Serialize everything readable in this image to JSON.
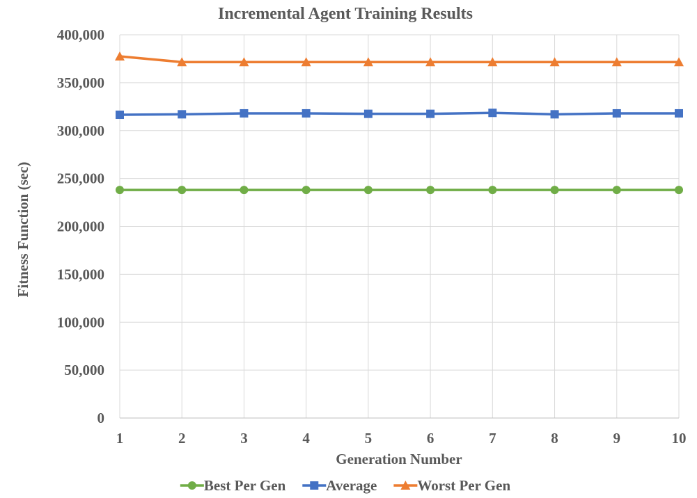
{
  "chart_data": {
    "type": "line",
    "title": "Incremental Agent Training Results",
    "xlabel": "Generation Number",
    "ylabel": "Fitness Function (sec)",
    "x": [
      "1",
      "2",
      "3",
      "4",
      "5",
      "6",
      "7",
      "8",
      "9",
      "10"
    ],
    "ylim": [
      0,
      400000
    ],
    "yticks": [
      "0",
      "50,000",
      "100,000",
      "150,000",
      "200,000",
      "250,000",
      "300,000",
      "350,000",
      "400,000"
    ],
    "ytick_values": [
      0,
      50000,
      100000,
      150000,
      200000,
      250000,
      300000,
      350000,
      400000
    ],
    "grid": true,
    "legend_position": "bottom",
    "series": [
      {
        "name": "Best Per Gen",
        "marker": "circle",
        "color": "#70ad47",
        "values": [
          238000,
          238000,
          238000,
          238000,
          238000,
          238000,
          238000,
          238000,
          238000,
          238000
        ]
      },
      {
        "name": "Average",
        "marker": "square",
        "color": "#4472c4",
        "values": [
          316500,
          317000,
          318000,
          318000,
          317500,
          317500,
          318500,
          317000,
          318000,
          318000
        ]
      },
      {
        "name": "Worst Per Gen",
        "marker": "triangle",
        "color": "#ed7d31",
        "values": [
          377500,
          371500,
          371500,
          371500,
          371500,
          371500,
          371500,
          371500,
          371500,
          371500
        ]
      }
    ]
  }
}
